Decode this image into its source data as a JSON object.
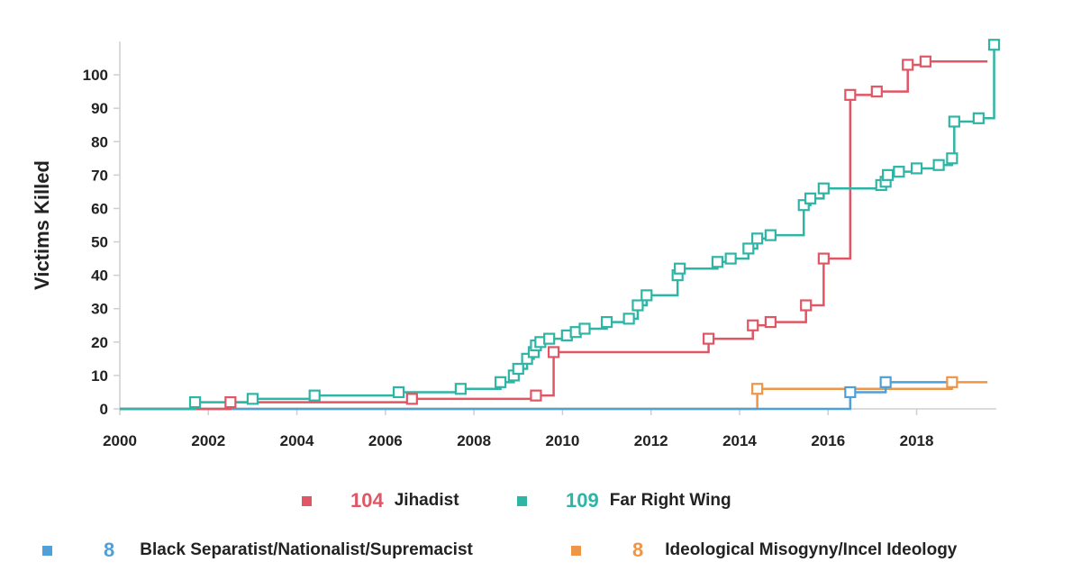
{
  "chart_data": {
    "type": "line",
    "step": true,
    "ylabel": "Victims Killed",
    "xlim": [
      2000,
      2019.8
    ],
    "ylim": [
      0,
      110
    ],
    "x_ticks": [
      "2000",
      "2002",
      "2004",
      "2006",
      "2008",
      "2010",
      "2012",
      "2014",
      "2016",
      "2018"
    ],
    "y_ticks": [
      "0",
      "10",
      "20",
      "30",
      "40",
      "50",
      "60",
      "70",
      "80",
      "90",
      "100"
    ],
    "grid": false,
    "legend_position": "bottom",
    "series": [
      {
        "name": "Jihadist",
        "total": "104",
        "color": "#e05665",
        "points": [
          [
            2002.5,
            2
          ],
          [
            2006.6,
            3
          ],
          [
            2009.4,
            4
          ],
          [
            2009.8,
            17
          ],
          [
            2013.3,
            21
          ],
          [
            2014.3,
            25
          ],
          [
            2014.7,
            26
          ],
          [
            2015.5,
            31
          ],
          [
            2015.9,
            45
          ],
          [
            2016.5,
            94
          ],
          [
            2017.1,
            95
          ],
          [
            2017.8,
            103
          ],
          [
            2018.2,
            104
          ]
        ],
        "end_x": 2019.6
      },
      {
        "name": "Far Right Wing",
        "total": "109",
        "color": "#2fb5a5",
        "points": [
          [
            2001.7,
            2
          ],
          [
            2003.0,
            3
          ],
          [
            2004.4,
            4
          ],
          [
            2006.3,
            5
          ],
          [
            2007.7,
            6
          ],
          [
            2008.6,
            8
          ],
          [
            2008.9,
            10
          ],
          [
            2009.0,
            12
          ],
          [
            2009.2,
            15
          ],
          [
            2009.35,
            17
          ],
          [
            2009.4,
            19
          ],
          [
            2009.5,
            20
          ],
          [
            2009.7,
            21
          ],
          [
            2010.1,
            22
          ],
          [
            2010.3,
            23
          ],
          [
            2010.5,
            24
          ],
          [
            2011.0,
            26
          ],
          [
            2011.5,
            27
          ],
          [
            2011.7,
            31
          ],
          [
            2011.9,
            34
          ],
          [
            2012.6,
            40
          ],
          [
            2012.65,
            42
          ],
          [
            2013.5,
            44
          ],
          [
            2013.8,
            45
          ],
          [
            2014.2,
            48
          ],
          [
            2014.4,
            51
          ],
          [
            2014.7,
            52
          ],
          [
            2015.45,
            61
          ],
          [
            2015.6,
            63
          ],
          [
            2015.9,
            66
          ],
          [
            2017.2,
            67
          ],
          [
            2017.3,
            68
          ],
          [
            2017.35,
            70
          ],
          [
            2017.6,
            71
          ],
          [
            2018.0,
            72
          ],
          [
            2018.5,
            73
          ],
          [
            2018.8,
            75
          ],
          [
            2018.85,
            86
          ],
          [
            2019.4,
            87
          ],
          [
            2019.75,
            109
          ]
        ],
        "end_x": 2019.75
      },
      {
        "name": "Black Separatist/Nationalist/Supremacist",
        "total": "8",
        "color": "#4f9fd8",
        "points": [
          [
            2016.5,
            5
          ],
          [
            2017.3,
            8
          ]
        ],
        "end_x": 2018.8
      },
      {
        "name": "Ideological Misogyny/Incel Ideology",
        "total": "8",
        "color": "#ef9547",
        "points": [
          [
            2014.4,
            6
          ],
          [
            2018.8,
            8
          ]
        ],
        "end_x": 2019.6
      }
    ]
  }
}
